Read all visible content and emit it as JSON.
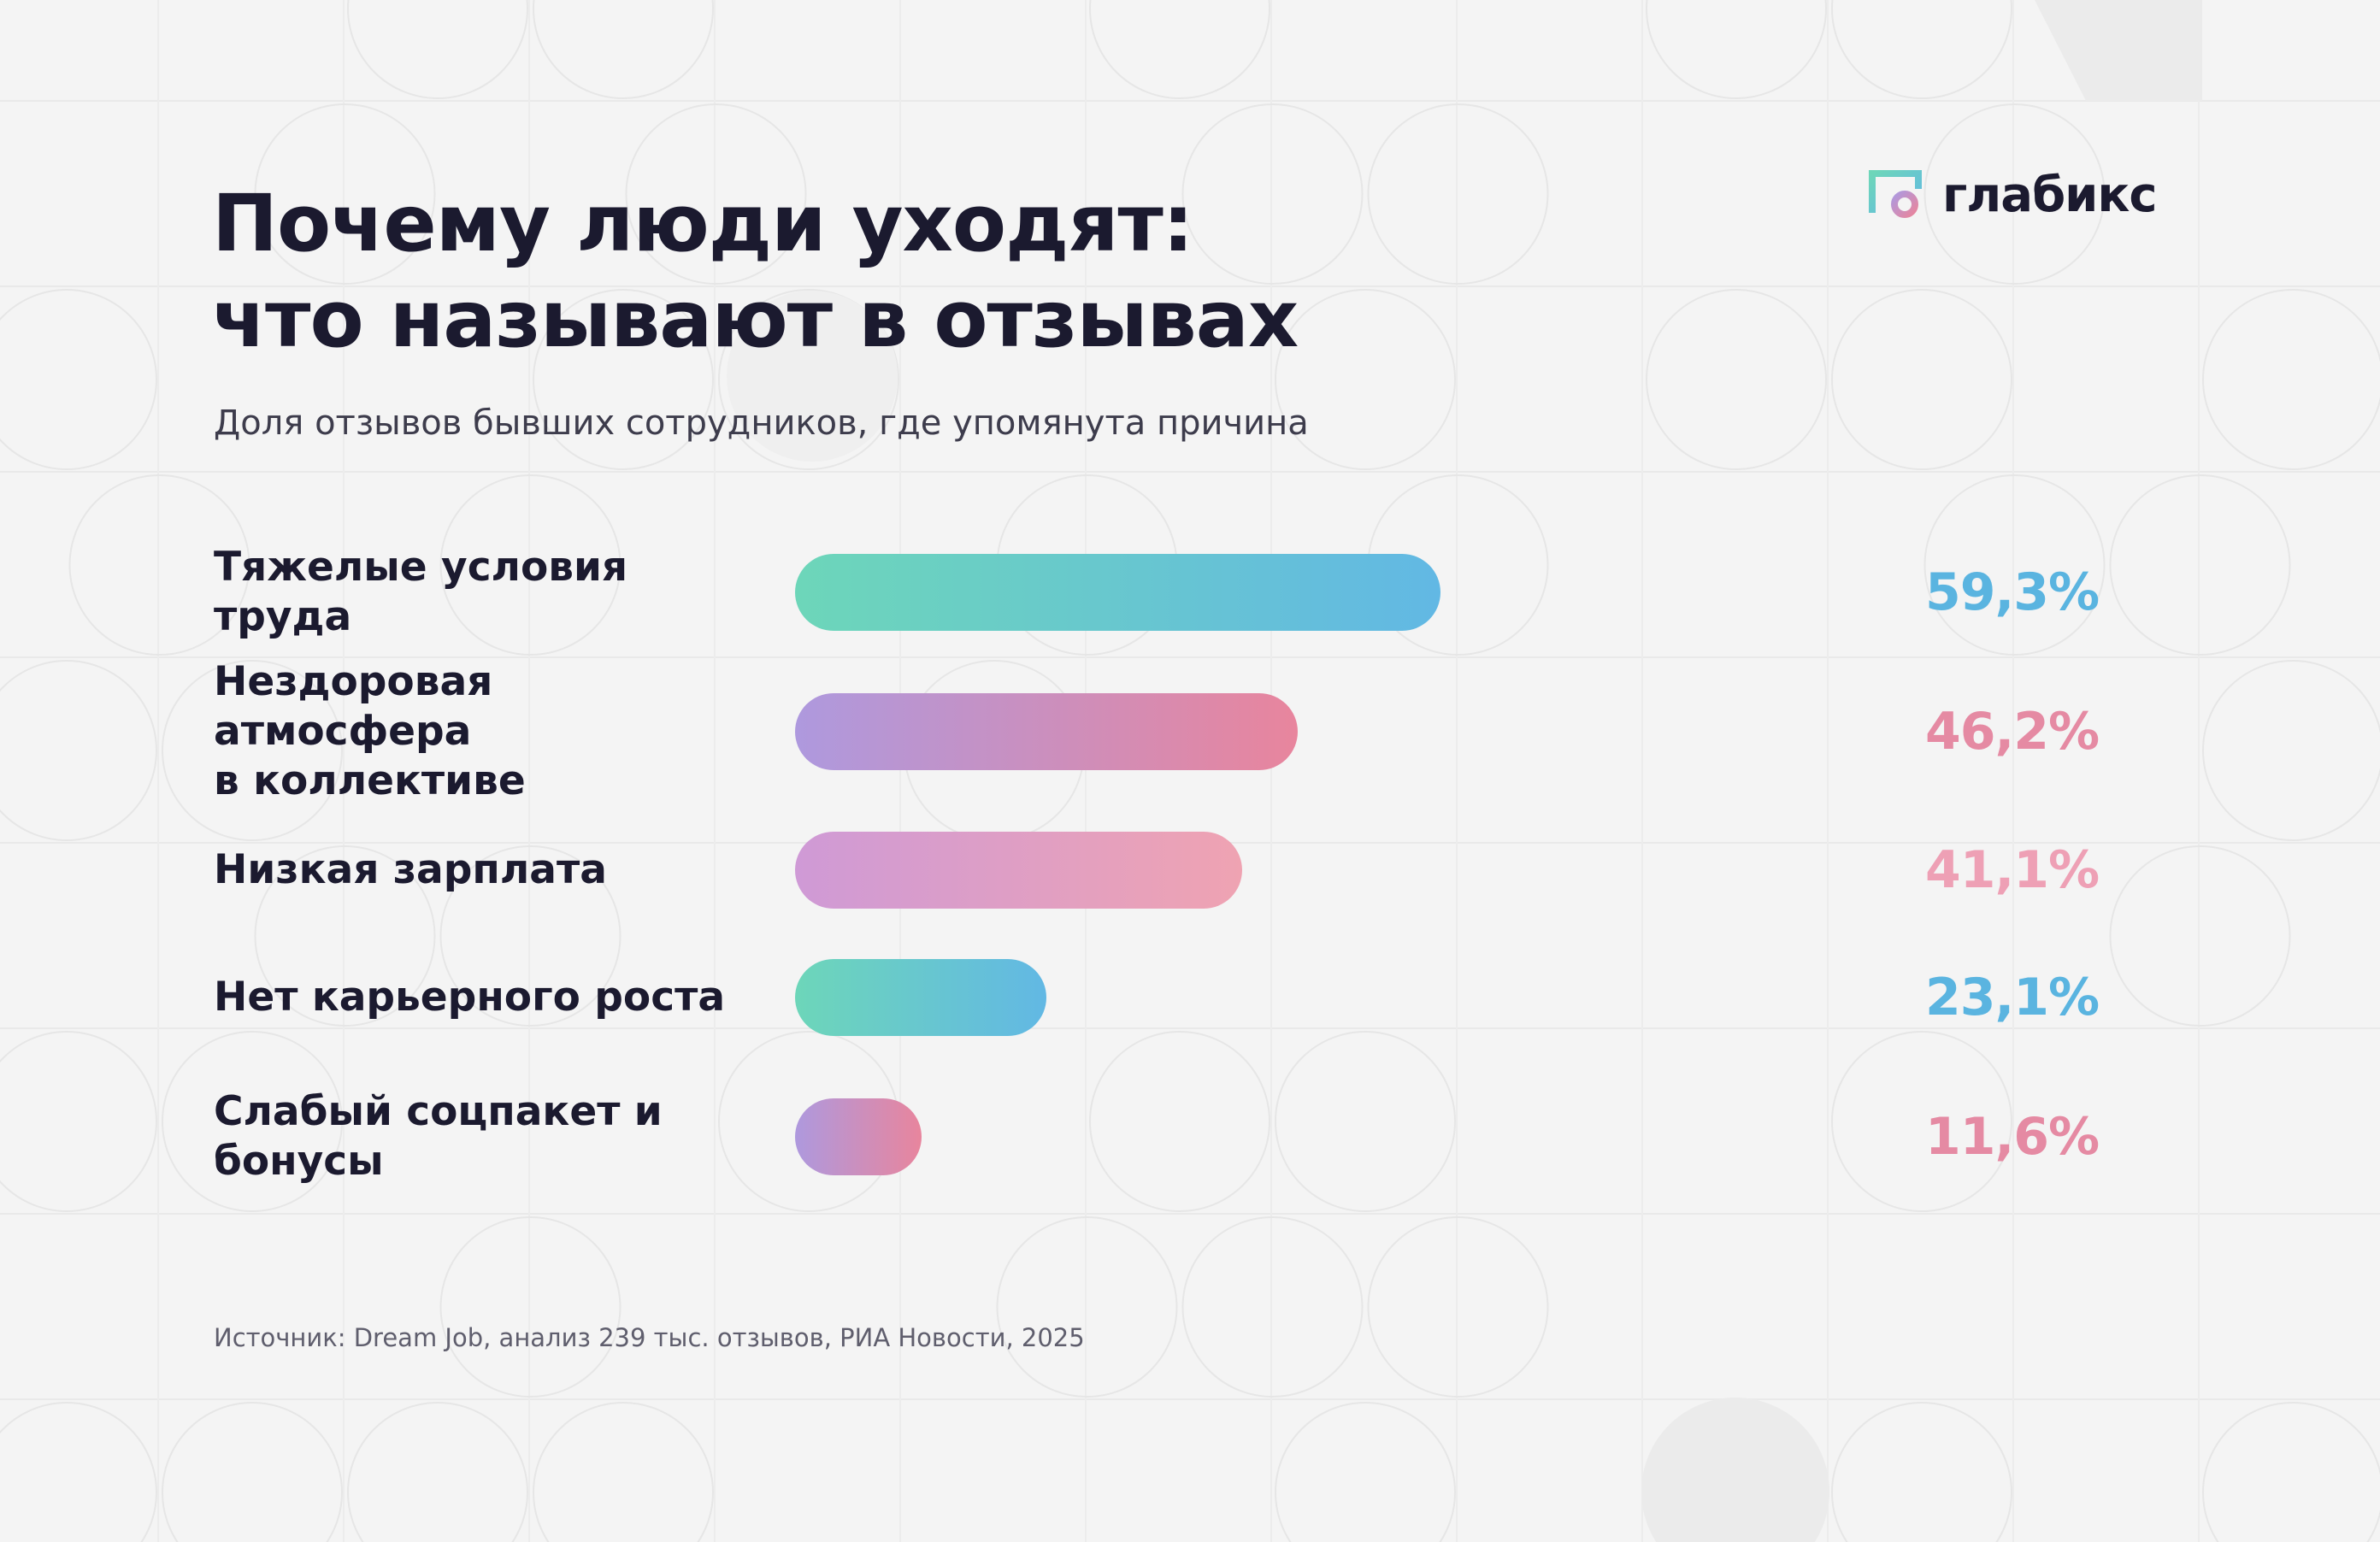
{
  "brand": {
    "name": "глабикс"
  },
  "header": {
    "title_line1": "Почему люди уходят:",
    "title_line2": "что называют в отзывах",
    "subtitle": "Доля отзывов бывших сотрудников, где упомянута причина"
  },
  "source": "Источник: Dream Job, анализ 239 тыс. отзывов, РИА Новости, 2025",
  "colors": {
    "teal_blue": [
      "#6dd6b9",
      "#62b8e4"
    ],
    "purple_pink": [
      "#ae99de",
      "#e8859d"
    ],
    "orchid_pink": [
      "#cf9ad6",
      "#efa3b2"
    ],
    "value_blue": "#5ab4e0",
    "value_pink": "#e58aa3",
    "value_light_pink": "#eea0b5"
  },
  "chart_data": {
    "type": "bar",
    "orientation": "horizontal",
    "unit": "%",
    "categories": [
      "Тяжелые условия труда",
      "Нездоровая атмосфера в коллективе",
      "Низкая зарплата",
      "Нет карьерного роста",
      "Слабый соцпакет и бонусы"
    ],
    "label_lines": [
      [
        "Тяжелые условия труда"
      ],
      [
        "Нездоровая атмосфера",
        "в коллективе"
      ],
      [
        "Низкая зарплата"
      ],
      [
        "Нет карьерного роста"
      ],
      [
        "Слабый соцпакет и",
        "бонусы"
      ]
    ],
    "values": [
      59.3,
      46.2,
      41.1,
      23.1,
      11.6
    ],
    "value_labels": [
      "59,3%",
      "46,2%",
      "41,1%",
      "23,1%",
      "11,6%"
    ],
    "bar_gradients": [
      "teal_blue",
      "purple_pink",
      "orchid_pink",
      "teal_blue",
      "purple_pink"
    ],
    "value_colors": [
      "value_blue",
      "value_pink",
      "value_light_pink",
      "value_blue",
      "value_pink"
    ],
    "xlim": [
      0,
      59.3
    ],
    "grid": false,
    "legend": "none"
  }
}
